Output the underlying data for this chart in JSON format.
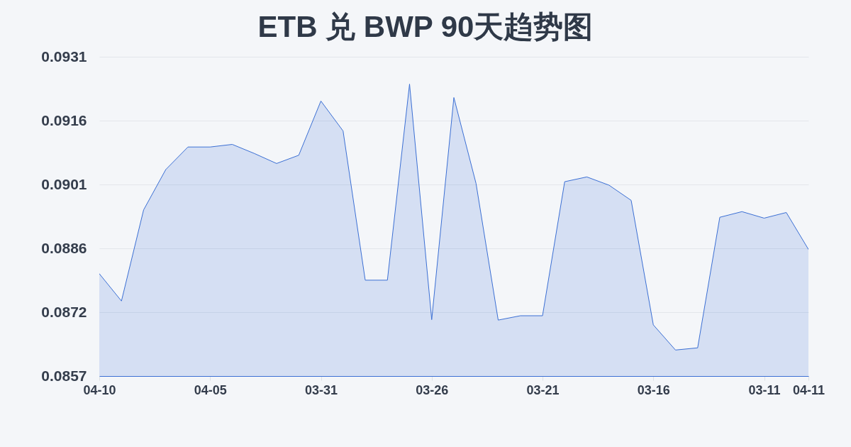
{
  "chart_data": {
    "type": "area",
    "title": "ETB 兑 BWP 90天趋势图",
    "categories": [
      "04-10",
      null,
      null,
      null,
      null,
      "04-05",
      null,
      null,
      null,
      null,
      "03-31",
      null,
      null,
      null,
      null,
      "03-26",
      null,
      null,
      null,
      null,
      "03-21",
      null,
      null,
      null,
      null,
      "03-16",
      null,
      null,
      null,
      null,
      "03-11",
      null,
      "04-11"
    ],
    "values": [
      0.08806,
      0.08743,
      0.08953,
      0.09046,
      0.09098,
      0.09098,
      0.09104,
      0.09083,
      0.0906,
      0.09079,
      0.09204,
      0.09135,
      0.08791,
      0.08791,
      0.09243,
      0.087,
      0.09212,
      0.09014,
      0.08699,
      0.08709,
      0.08709,
      0.09018,
      0.09029,
      0.0901,
      0.08975,
      0.08688,
      0.0863,
      0.08635,
      0.08936,
      0.08949,
      0.08934,
      0.08947,
      0.08862
    ],
    "color": "#3b6fd4",
    "ylim": [
      0.0857,
      0.09306
    ],
    "yticks": [
      {
        "value": 0.0857,
        "label": "0.0857"
      },
      {
        "value": 0.087172,
        "label": "0.0872"
      },
      {
        "value": 0.088644,
        "label": "0.0886"
      },
      {
        "value": 0.090116,
        "label": "0.0901"
      },
      {
        "value": 0.091588,
        "label": "0.0916"
      },
      {
        "value": 0.09306,
        "label": "0.0931"
      }
    ],
    "grid": "y"
  }
}
